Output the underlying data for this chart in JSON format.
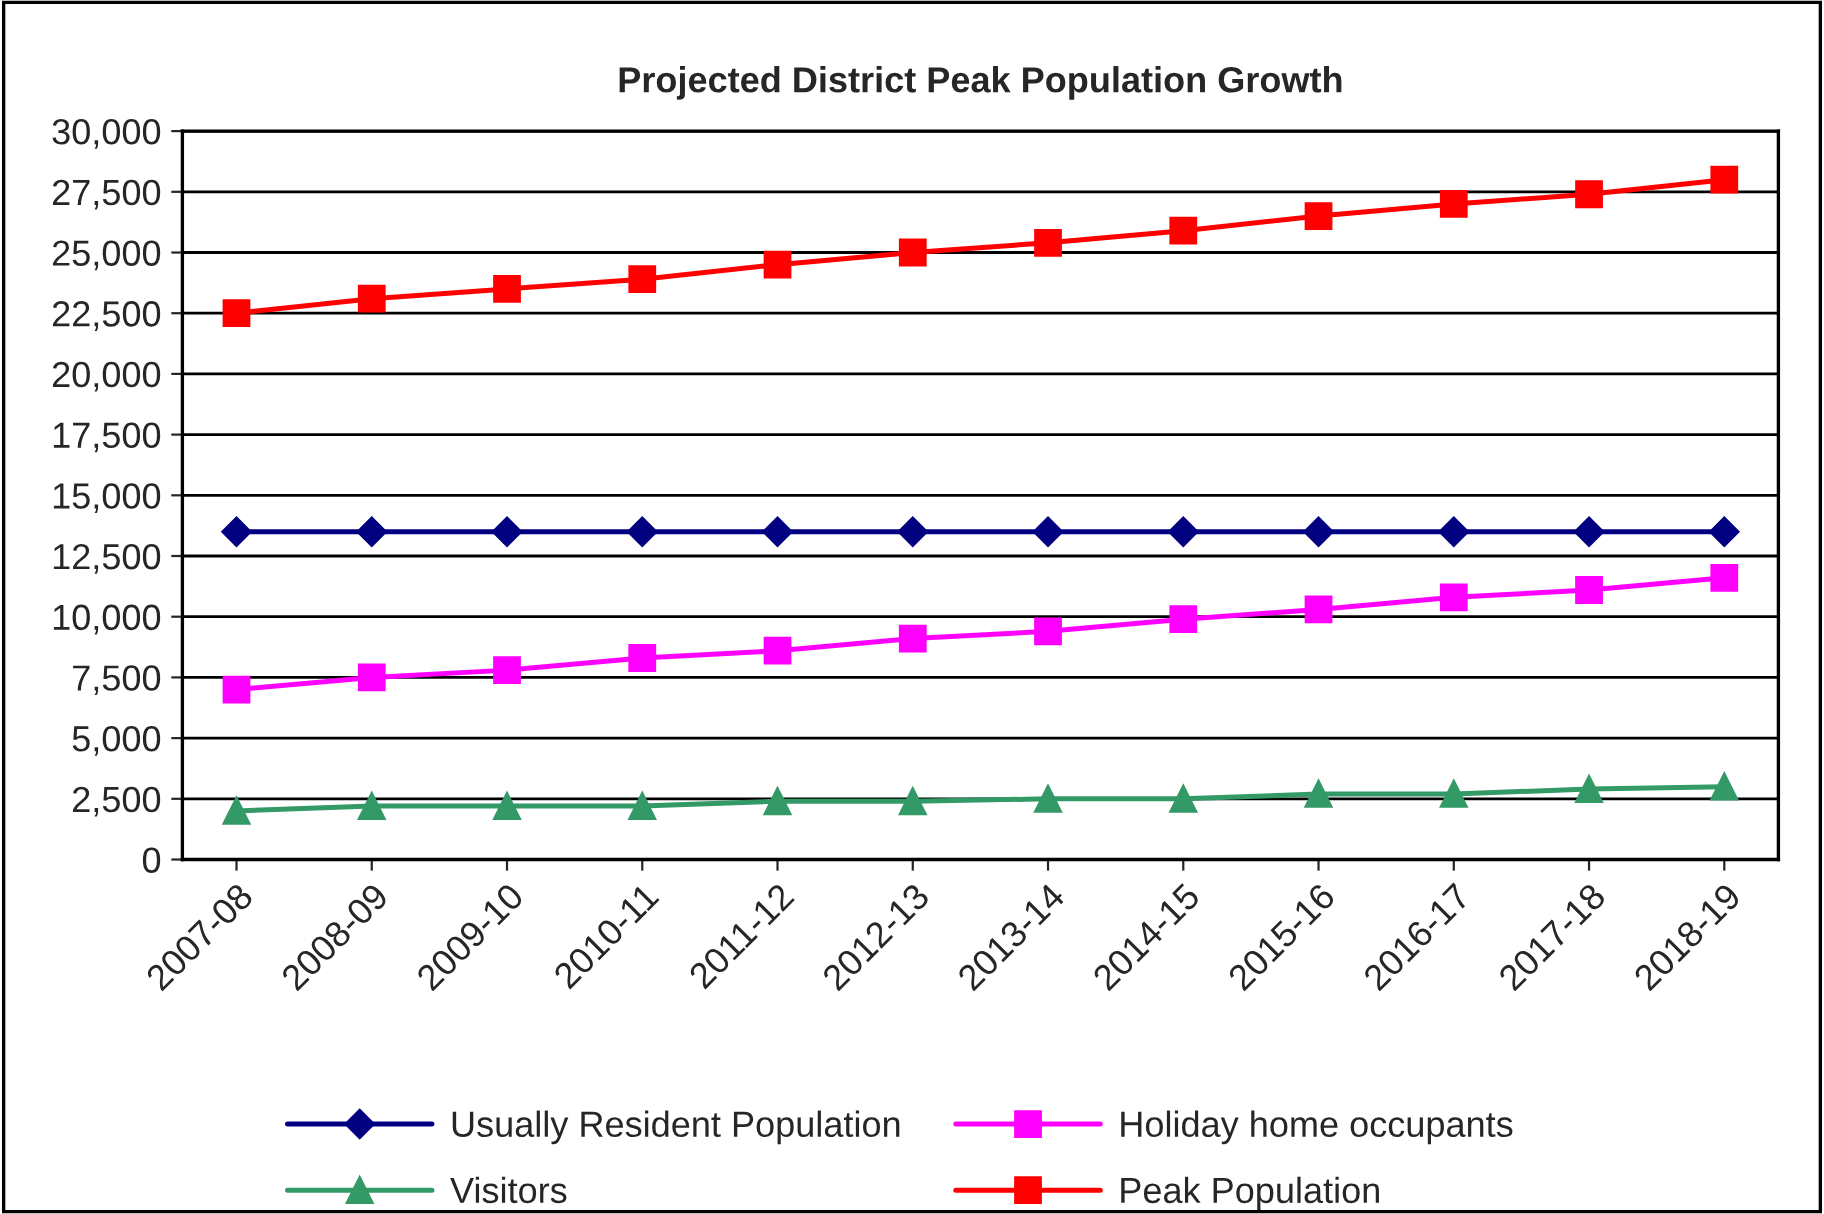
{
  "chart_data": {
    "type": "line",
    "title": "Projected District Peak Population Growth",
    "categories": [
      "2007-08",
      "2008-09",
      "2009-10",
      "2010-11",
      "2011-12",
      "2012-13",
      "2013-14",
      "2014-15",
      "2015-16",
      "2016-17",
      "2017-18",
      "2018-19"
    ],
    "series": [
      {
        "name": "Usually Resident Population",
        "color": "#000080",
        "marker": "diamond",
        "values": [
          13500,
          13500,
          13500,
          13500,
          13500,
          13500,
          13500,
          13500,
          13500,
          13500,
          13500,
          13500
        ]
      },
      {
        "name": "Holiday home occupants",
        "color": "#ff00ff",
        "marker": "square",
        "values": [
          7000,
          7500,
          7800,
          8300,
          8600,
          9100,
          9400,
          9900,
          10300,
          10800,
          11100,
          11600
        ]
      },
      {
        "name": "Visitors",
        "color": "#339966",
        "marker": "triangle",
        "values": [
          2000,
          2200,
          2200,
          2200,
          2400,
          2400,
          2500,
          2500,
          2700,
          2700,
          2900,
          3000
        ]
      },
      {
        "name": "Peak Population",
        "color": "#ff0000",
        "marker": "square",
        "values": [
          22500,
          23100,
          23500,
          23900,
          24500,
          25000,
          25400,
          25900,
          26500,
          27000,
          27400,
          28000
        ]
      }
    ],
    "ylim": [
      0,
      30000
    ],
    "yticks": [
      {
        "value": 0,
        "label": "0"
      },
      {
        "value": 2500,
        "label": "2,500"
      },
      {
        "value": 5000,
        "label": "5,000"
      },
      {
        "value": 7500,
        "label": "7,500"
      },
      {
        "value": 10000,
        "label": "10,000"
      },
      {
        "value": 12500,
        "label": "12,500"
      },
      {
        "value": 15000,
        "label": "15,000"
      },
      {
        "value": 17500,
        "label": "17,500"
      },
      {
        "value": 20000,
        "label": "20,000"
      },
      {
        "value": 22500,
        "label": "22,500"
      },
      {
        "value": 25000,
        "label": "25,000"
      },
      {
        "value": 27500,
        "label": "27,500"
      },
      {
        "value": 30000,
        "label": "30,000"
      }
    ],
    "grid": "y",
    "legend": "bottom",
    "line_style": "solid"
  }
}
